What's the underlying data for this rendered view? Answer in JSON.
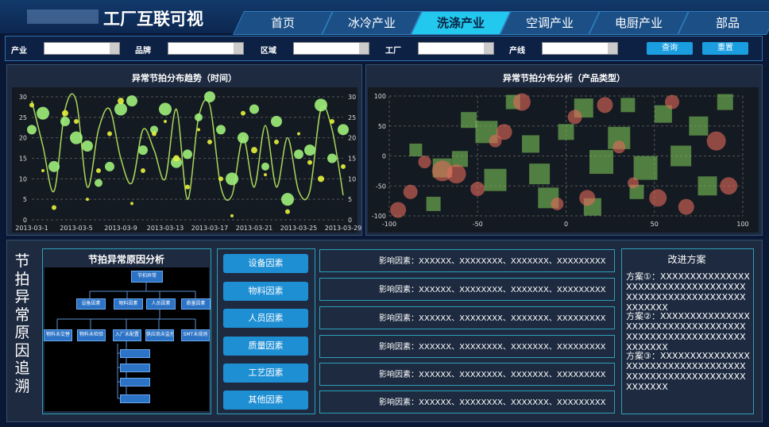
{
  "header": {
    "title": "工厂互联可视",
    "nav": [
      {
        "label": "首页",
        "active": false
      },
      {
        "label": "冰冷产业",
        "active": false
      },
      {
        "label": "洗涤产业",
        "active": true
      },
      {
        "label": "空调产业",
        "active": false
      },
      {
        "label": "电厨产业",
        "active": false
      },
      {
        "label": "部品",
        "active": false
      }
    ]
  },
  "filters": {
    "labels": [
      "产业",
      "品牌",
      "区域",
      "工厂",
      "产线"
    ],
    "buttons": [
      "查询",
      "重置"
    ]
  },
  "chart_data": [
    {
      "type": "line",
      "title": "异常节拍分布趋势（时间）",
      "categories": [
        "2013-03-1",
        null,
        null,
        null,
        "2013-03-5",
        null,
        null,
        null,
        "2013-03-9",
        null,
        null,
        null,
        "2013-03-13",
        null,
        null,
        null,
        "2013-03-17",
        null,
        null,
        null,
        "2013-03-21",
        null,
        null,
        null,
        "2013-03-25",
        null,
        null,
        null,
        "2013-03-29"
      ],
      "ylim": [
        0,
        30
      ],
      "yticks": [
        0,
        5,
        10,
        15,
        20,
        25,
        30
      ],
      "y2lim": [
        0,
        30
      ],
      "y2ticks": [
        0,
        5,
        10,
        15,
        20,
        25,
        30
      ],
      "grid": true,
      "series": [
        {
          "type": "line",
          "color": "#a9d65a",
          "values": [
            29,
            18,
            7,
            27,
            29,
            8,
            22,
            27,
            15,
            9,
            22,
            17,
            10,
            27,
            5,
            25,
            28,
            8,
            6,
            20,
            8,
            23,
            8,
            20,
            7,
            7,
            27,
            22,
            6
          ]
        },
        {
          "type": "scatter",
          "color": "#9ef07a",
          "values": [
            22,
            26,
            13,
            24,
            20,
            18,
            9,
            13,
            27,
            29,
            17,
            22,
            27,
            14,
            16,
            25,
            30,
            22,
            10,
            20,
            27,
            13,
            24,
            5,
            16,
            17,
            28,
            15,
            22
          ],
          "sizes": [
            6,
            8,
            7,
            6,
            8,
            7,
            5,
            6,
            8,
            7,
            6,
            5,
            8,
            7,
            6,
            5,
            7,
            6,
            8,
            7,
            6,
            5,
            7,
            8,
            6,
            7,
            8,
            6,
            7
          ]
        },
        {
          "type": "scatter",
          "color": "#e6f23c",
          "values": [
            28,
            12,
            3,
            26,
            24,
            5,
            12,
            21,
            29,
            4,
            12,
            21,
            24,
            15,
            8,
            22,
            19,
            10,
            1,
            26,
            17,
            11,
            19,
            2,
            21,
            14,
            10,
            24,
            13
          ],
          "sizes": [
            3,
            2,
            3,
            4,
            3,
            2,
            3,
            3,
            4,
            2,
            3,
            3,
            2,
            4,
            3,
            2,
            3,
            3,
            2,
            3,
            4,
            2,
            3,
            3,
            2,
            3,
            4,
            3,
            3
          ]
        }
      ]
    },
    {
      "type": "scatter",
      "title": "异常节拍分布分析（产品类型）",
      "xlim": [
        -100,
        100
      ],
      "ylim": [
        -100,
        100
      ],
      "xticks": [
        -100,
        -50,
        0,
        50,
        100
      ],
      "yticks": [
        -100,
        -50,
        0,
        50,
        100
      ],
      "grid": true,
      "series": [
        {
          "marker": "square",
          "color": "#79c257",
          "x": [
            -85,
            -70,
            -55,
            -40,
            -30,
            -20,
            -10,
            0,
            10,
            20,
            30,
            40,
            55,
            65,
            80,
            90,
            -75,
            -45,
            -15,
            15,
            45,
            75,
            -60,
            35
          ],
          "values": [
            10,
            -20,
            60,
            -40,
            90,
            20,
            -70,
            40,
            80,
            -10,
            30,
            -60,
            70,
            0,
            -50,
            90,
            -80,
            40,
            -30,
            -85,
            -20,
            50,
            -5,
            85
          ],
          "sizes": [
            8,
            12,
            10,
            14,
            9,
            11,
            13,
            10,
            12,
            15,
            14,
            9,
            11,
            13,
            12,
            10,
            9,
            14,
            13,
            11,
            15,
            12,
            10,
            9
          ]
        },
        {
          "marker": "circle",
          "color": "#e46a5a",
          "x": [
            -95,
            -80,
            -62,
            -50,
            -35,
            -25,
            -5,
            5,
            22,
            38,
            52,
            68,
            85,
            -88,
            -40,
            12,
            60,
            92,
            -70,
            30
          ],
          "values": [
            -90,
            -10,
            -30,
            -55,
            40,
            90,
            -80,
            65,
            85,
            -45,
            -70,
            -85,
            25,
            -60,
            25,
            -70,
            90,
            -50,
            -25,
            15
          ],
          "sizes": [
            10,
            8,
            12,
            9,
            10,
            11,
            8,
            9,
            10,
            7,
            11,
            10,
            12,
            9,
            8,
            10,
            9,
            11,
            13,
            8
          ]
        }
      ]
    }
  ],
  "trace": {
    "side_title": "节拍异常原因追溯",
    "diagram": {
      "title": "节拍异常原因分析",
      "root": "节拍异常",
      "level2": [
        "设备因素",
        "物料因素",
        "人员因素",
        "质量因素"
      ],
      "level3": [
        "物料未交替",
        "物料未检验",
        "入厂未配置",
        "供应商未监控",
        "SMT未规则"
      ]
    },
    "factors": [
      "设备因素",
      "物料因素",
      "人员因素",
      "质量因素",
      "工艺因素",
      "其他因素"
    ],
    "impacts": [
      "影响因素：XXXXXX、XXXXXXXX、XXXXXXX、XXXXXXXXX",
      "影响因素：XXXXXX、XXXXXXXX、XXXXXXX、XXXXXXXXX",
      "影响因素：XXXXXX、XXXXXXXX、XXXXXXX、XXXXXXXXX",
      "影响因素：XXXXXX、XXXXXXXX、XXXXXXX、XXXXXXXXX",
      "影响因素：XXXXXX、XXXXXXXX、XXXXXXX、XXXXXXXXX",
      "影响因素：XXXXXX、XXXXXXXX、XXXXXXX、XXXXXXXXX"
    ],
    "plan": {
      "title": "改进方案",
      "items": [
        "方案①：XXXXXXXXXXXXXXXXXXXXXXXXXXXXXXXXXXXXXXXXXXXXXXXXXXXXXXXXXXXXXX",
        "方案②：XXXXXXXXXXXXXXXXXXXXXXXXXXXXXXXXXXXXXXXXXXXXXXXXXXXXXXXXXXXXXX",
        "方案③：XXXXXXXXXXXXXXXXXXXXXXXXXXXXXXXXXXXXXXXXXXXXXXXXXXXXXXXXXXXXXX"
      ]
    }
  }
}
